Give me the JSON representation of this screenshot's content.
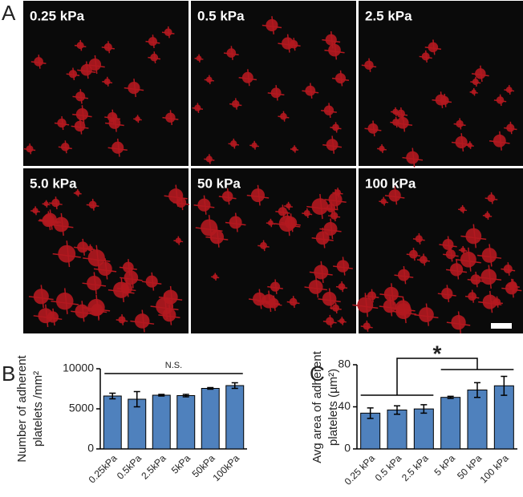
{
  "panel_labels": [
    "A",
    "B",
    "C"
  ],
  "images": [
    "0.25 kPa",
    "0.5 kPa",
    "2.5 kPa",
    "5.0 kPa",
    "50 kPa",
    "100 kPa"
  ],
  "chart_data": [
    {
      "type": "bar",
      "y_label": [
        "Number of adherent",
        "platelets /mm²"
      ],
      "categories": [
        "0.25kPa",
        "0.5kPa",
        "2.5kPa",
        "5kPa",
        "50kPa",
        "100kPa"
      ],
      "values": [
        6600,
        6200,
        6700,
        6650,
        7550,
        7900
      ],
      "errors": [
        350,
        950,
        100,
        150,
        100,
        350
      ],
      "color": "#4f81bd",
      "ylim": [
        0,
        10000
      ],
      "yticks": [
        0,
        5000,
        10000
      ],
      "annotation": "N.S."
    },
    {
      "type": "bar",
      "y_label": [
        "Avg area of adherent",
        "platelets (µm²)"
      ],
      "categories": [
        "0.25 kPa",
        "0.5 kPa",
        "2.5 kPa",
        "5 kPa",
        "50 kPa",
        "100 kPa"
      ],
      "values": [
        34,
        37,
        38,
        49,
        56,
        60
      ],
      "errors": [
        5,
        4,
        4,
        1,
        7,
        9
      ],
      "color": "#4f81bd",
      "ylim": [
        0,
        80
      ],
      "yticks": [
        0,
        40,
        80
      ],
      "annotation": "*"
    }
  ]
}
